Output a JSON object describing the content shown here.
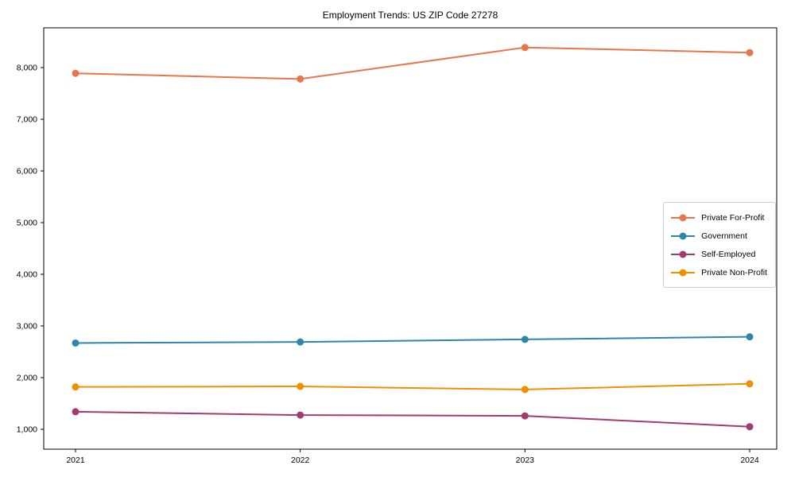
{
  "chart_data": {
    "type": "line",
    "title": "Employment Trends: US ZIP Code 27278",
    "xlabel": "",
    "ylabel": "",
    "categories": [
      "2021",
      "2022",
      "2023",
      "2024"
    ],
    "series": [
      {
        "name": "Private For-Profit",
        "color": "#E8764B",
        "values": [
          7890,
          7780,
          8390,
          8290
        ]
      },
      {
        "name": "Government",
        "color": "#2E86AB",
        "values": [
          2670,
          2690,
          2740,
          2790
        ]
      },
      {
        "name": "Self-Employed",
        "color": "#A23B72",
        "values": [
          1340,
          1275,
          1260,
          1050
        ]
      },
      {
        "name": "Private Non-Profit",
        "color": "#F18F01",
        "values": [
          1820,
          1830,
          1770,
          1880
        ]
      }
    ],
    "yticks": [
      {
        "value": 1000,
        "label": "1,000"
      },
      {
        "value": 2000,
        "label": "2,000"
      },
      {
        "value": 3000,
        "label": "3,000"
      },
      {
        "value": 4000,
        "label": "4,000"
      },
      {
        "value": 5000,
        "label": "5,000"
      },
      {
        "value": 6000,
        "label": "6,000"
      },
      {
        "value": 7000,
        "label": "7,000"
      },
      {
        "value": 8000,
        "label": "8,000"
      }
    ],
    "ylim": [
      615,
      8770
    ],
    "grid": false,
    "legend_position": "center-right",
    "marker": "circle",
    "axis_color": "#000000"
  }
}
